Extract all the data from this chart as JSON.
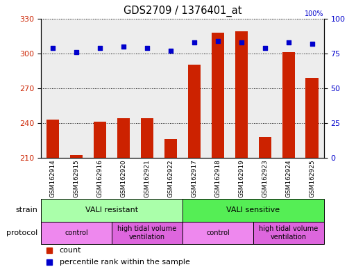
{
  "title": "GDS2709 / 1376401_at",
  "samples": [
    "GSM162914",
    "GSM162915",
    "GSM162916",
    "GSM162920",
    "GSM162921",
    "GSM162922",
    "GSM162917",
    "GSM162918",
    "GSM162919",
    "GSM162923",
    "GSM162924",
    "GSM162925"
  ],
  "counts": [
    243,
    212,
    241,
    244,
    244,
    226,
    290,
    318,
    319,
    228,
    301,
    279
  ],
  "percentiles": [
    79,
    76,
    79,
    80,
    79,
    77,
    83,
    84,
    83,
    79,
    83,
    82
  ],
  "ylim_left": [
    210,
    330
  ],
  "ylim_right": [
    0,
    100
  ],
  "yticks_left": [
    210,
    240,
    270,
    300,
    330
  ],
  "yticks_right": [
    0,
    25,
    50,
    75,
    100
  ],
  "bar_color": "#cc2200",
  "dot_color": "#0000cc",
  "strain_groups": [
    {
      "label": "VALI resistant",
      "start": 0,
      "end": 6,
      "color": "#aaffaa"
    },
    {
      "label": "VALI sensitive",
      "start": 6,
      "end": 12,
      "color": "#55ee55"
    }
  ],
  "protocol_groups": [
    {
      "label": "control",
      "start": 0,
      "end": 3,
      "color": "#ee88ee"
    },
    {
      "label": "high tidal volume\nventilation",
      "start": 3,
      "end": 6,
      "color": "#dd66dd"
    },
    {
      "label": "control",
      "start": 6,
      "end": 9,
      "color": "#ee88ee"
    },
    {
      "label": "high tidal volume\nventilation",
      "start": 9,
      "end": 12,
      "color": "#dd66dd"
    }
  ],
  "strain_label": "strain",
  "protocol_label": "protocol",
  "legend_count_label": "count",
  "legend_pct_label": "percentile rank within the sample",
  "background_color": "#ffffff",
  "tick_label_color_left": "#cc2200",
  "tick_label_color_right": "#0000cc",
  "xlabel_bg": "#cccccc"
}
